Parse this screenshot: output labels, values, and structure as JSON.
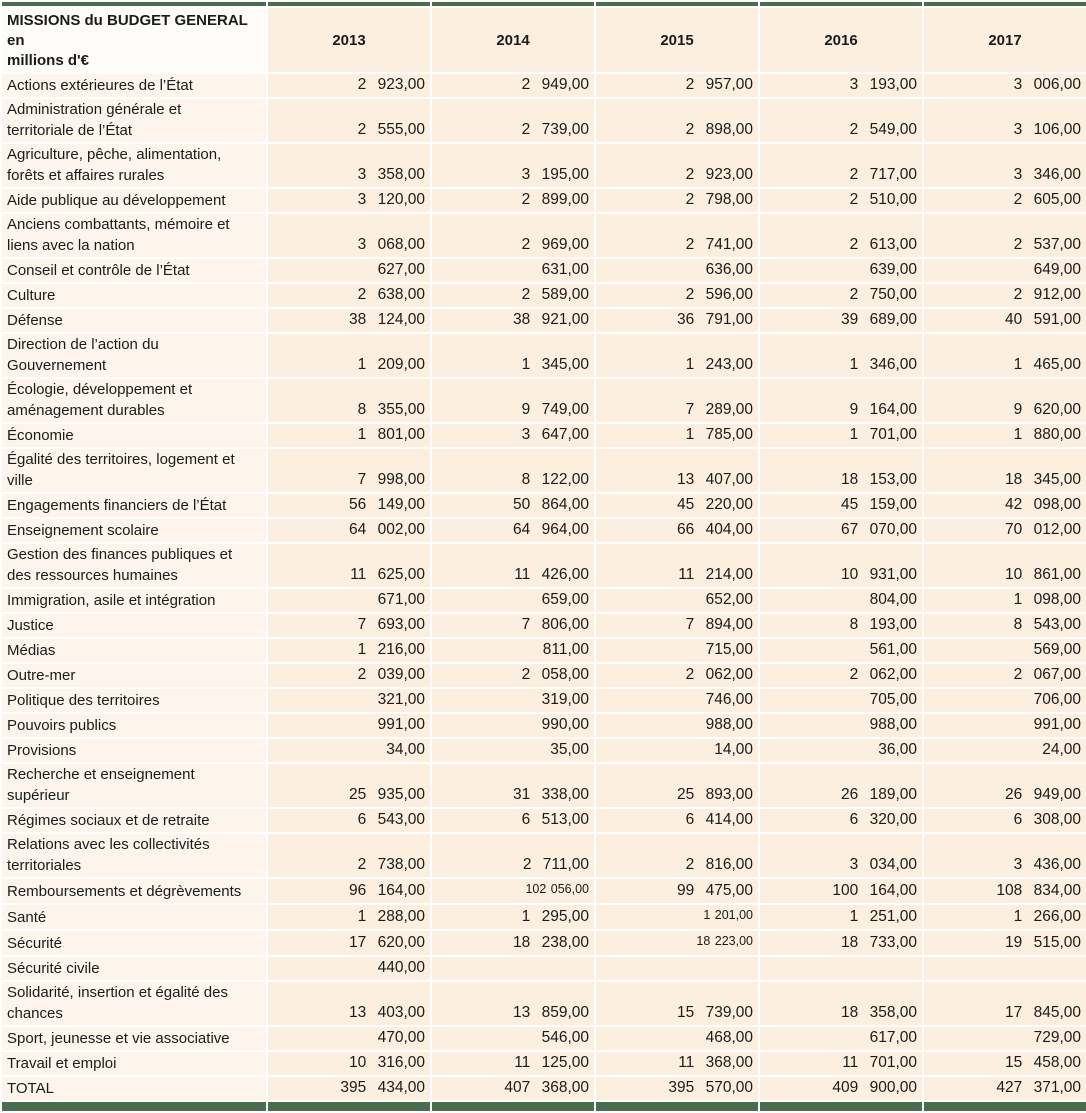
{
  "table": {
    "title": "MISSIONS du BUDGET GENERAL en\nmillions d'€",
    "years": [
      "2013",
      "2014",
      "2015",
      "2016",
      "2017"
    ],
    "rows": [
      {
        "label": "Actions extérieures de l’État",
        "lines": 1,
        "values": [
          "2 923,00",
          "2 949,00",
          "2 957,00",
          "3 193,00",
          "3 006,00"
        ]
      },
      {
        "label": "Administration générale et\nterritoriale de l’État",
        "lines": 2,
        "values": [
          "2 555,00",
          "2 739,00",
          "2 898,00",
          "2 549,00",
          "3 106,00"
        ]
      },
      {
        "label": "Agriculture, pêche, alimentation,\nforêts et affaires rurales",
        "lines": 2,
        "values": [
          "3 358,00",
          "3 195,00",
          "2 923,00",
          "2 717,00",
          "3 346,00"
        ]
      },
      {
        "label": "Aide publique au développement",
        "lines": 1,
        "values": [
          "3 120,00",
          "2 899,00",
          "2 798,00",
          "2 510,00",
          "2 605,00"
        ]
      },
      {
        "label": "Anciens combattants, mémoire et\nliens avec la nation",
        "lines": 2,
        "values": [
          "3 068,00",
          "2 969,00",
          "2 741,00",
          "2 613,00",
          "2 537,00"
        ]
      },
      {
        "label": "Conseil et contrôle de l’État",
        "lines": 1,
        "values": [
          "627,00",
          "631,00",
          "636,00",
          "639,00",
          "649,00"
        ]
      },
      {
        "label": "Culture",
        "lines": 1,
        "values": [
          "2 638,00",
          "2 589,00",
          "2 596,00",
          "2 750,00",
          "2 912,00"
        ]
      },
      {
        "label": "Défense",
        "lines": 1,
        "values": [
          "38 124,00",
          "38 921,00",
          "36 791,00",
          "39 689,00",
          "40 591,00"
        ]
      },
      {
        "label": "Direction de l’action du\nGouvernement",
        "lines": 2,
        "values": [
          "1 209,00",
          "1 345,00",
          "1 243,00",
          "1 346,00",
          "1 465,00"
        ]
      },
      {
        "label": "Écologie, développement et\naménagement durables",
        "lines": 2,
        "values": [
          "8 355,00",
          "9 749,00",
          "7 289,00",
          "9 164,00",
          "9 620,00"
        ]
      },
      {
        "label": "Économie",
        "lines": 1,
        "values": [
          "1 801,00",
          "3 647,00",
          "1 785,00",
          "1 701,00",
          "1 880,00"
        ]
      },
      {
        "label": "Égalité des territoires, logement et\nville",
        "lines": 2,
        "values": [
          "7 998,00",
          "8 122,00",
          "13 407,00",
          "18 153,00",
          "18 345,00"
        ]
      },
      {
        "label": "Engagements financiers de l’État",
        "lines": 1,
        "values": [
          "56 149,00",
          "50 864,00",
          "45 220,00",
          "45 159,00",
          "42 098,00"
        ]
      },
      {
        "label": "Enseignement scolaire",
        "lines": 1,
        "values": [
          "64 002,00",
          "64 964,00",
          "66 404,00",
          "67 070,00",
          "70 012,00"
        ]
      },
      {
        "label": "Gestion des finances publiques et\ndes ressources humaines",
        "lines": 2,
        "values": [
          "11 625,00",
          "11 426,00",
          "11 214,00",
          "10 931,00",
          "10 861,00"
        ]
      },
      {
        "label": "Immigration, asile et intégration",
        "lines": 1,
        "values": [
          "671,00",
          "659,00",
          "652,00",
          "804,00",
          "1 098,00"
        ]
      },
      {
        "label": "Justice",
        "lines": 1,
        "values": [
          "7 693,00",
          "7 806,00",
          "7 894,00",
          "8 193,00",
          "8 543,00"
        ]
      },
      {
        "label": "Médias",
        "lines": 1,
        "values": [
          "1 216,00",
          "811,00",
          "715,00",
          "561,00",
          "569,00"
        ]
      },
      {
        "label": "Outre-mer",
        "lines": 1,
        "values": [
          "2 039,00",
          "2 058,00",
          "2 062,00",
          "2 062,00",
          "2 067,00"
        ]
      },
      {
        "label": "Politique des territoires",
        "lines": 1,
        "values": [
          "321,00",
          "319,00",
          "746,00",
          "705,00",
          "706,00"
        ]
      },
      {
        "label": "Pouvoirs publics",
        "lines": 1,
        "values": [
          "991,00",
          "990,00",
          "988,00",
          "988,00",
          "991,00"
        ]
      },
      {
        "label": "Provisions",
        "lines": 1,
        "values": [
          "34,00",
          "35,00",
          "14,00",
          "36,00",
          "24,00"
        ]
      },
      {
        "label": "Recherche et enseignement\nsupérieur",
        "lines": 2,
        "values": [
          "25 935,00",
          "31 338,00",
          "25 893,00",
          "26 189,00",
          "26 949,00"
        ]
      },
      {
        "label": "Régimes sociaux et de retraite",
        "lines": 1,
        "values": [
          "6 543,00",
          "6 513,00",
          "6 414,00",
          "6 320,00",
          "6 308,00"
        ]
      },
      {
        "label": "Relations avec les collectivités\nterritoriales",
        "lines": 2,
        "values": [
          "2 738,00",
          "2 711,00",
          "2 816,00",
          "3 034,00",
          "3 436,00"
        ]
      },
      {
        "label": "Remboursements et dégrèvements",
        "lines": 1,
        "values": [
          "96 164,00",
          "102 056,00",
          "99 475,00",
          "100 164,00",
          "108 834,00"
        ],
        "small_cols": [
          1
        ]
      },
      {
        "label": "Santé",
        "lines": 1,
        "values": [
          "1 288,00",
          "1 295,00",
          "1 201,00",
          "1 251,00",
          "1 266,00"
        ],
        "small_cols": [
          2
        ]
      },
      {
        "label": "Sécurité",
        "lines": 1,
        "values": [
          "17 620,00",
          "18 238,00",
          "18 223,00",
          "18 733,00",
          "19 515,00"
        ],
        "small_cols": [
          2
        ]
      },
      {
        "label": "Sécurité civile",
        "lines": 1,
        "values": [
          "440,00",
          "",
          "",
          "",
          ""
        ]
      },
      {
        "label": "Solidarité, insertion et égalité des\nchances",
        "lines": 2,
        "values": [
          "13 403,00",
          "13 859,00",
          "15 739,00",
          "18 358,00",
          "17 845,00"
        ]
      },
      {
        "label": "Sport, jeunesse et vie associative",
        "lines": 1,
        "values": [
          "470,00",
          "546,00",
          "468,00",
          "617,00",
          "729,00"
        ]
      },
      {
        "label": "Travail et emploi",
        "lines": 1,
        "values": [
          "10 316,00",
          "11 125,00",
          "11 368,00",
          "11 701,00",
          "15 458,00"
        ]
      },
      {
        "label": "TOTAL",
        "lines": 1,
        "total": true,
        "values": [
          "395 434,00",
          "407 368,00",
          "395 570,00",
          "409 900,00",
          "427 371,00"
        ]
      }
    ]
  },
  "colors": {
    "bar_green": "#4a6d4e",
    "data_cell_bg": "#fcefdf",
    "label_cell_bg": "#fdf5ec",
    "header_label_bg": "#fefcf8",
    "gridline": "#ffffff",
    "text": "#1b1b1b"
  },
  "chart_data": {
    "type": "table",
    "title": "MISSIONS du BUDGET GENERAL en millions d'€",
    "columns": [
      "2013",
      "2014",
      "2015",
      "2016",
      "2017"
    ],
    "unit": "millions d'€",
    "rows": [
      {
        "label": "Actions extérieures de l’État",
        "values": [
          2923,
          2949,
          2957,
          3193,
          3006
        ]
      },
      {
        "label": "Administration générale et territoriale de l’État",
        "values": [
          2555,
          2739,
          2898,
          2549,
          3106
        ]
      },
      {
        "label": "Agriculture, pêche, alimentation, forêts et affaires rurales",
        "values": [
          3358,
          3195,
          2923,
          2717,
          3346
        ]
      },
      {
        "label": "Aide publique au développement",
        "values": [
          3120,
          2899,
          2798,
          2510,
          2605
        ]
      },
      {
        "label": "Anciens combattants, mémoire et liens avec la nation",
        "values": [
          3068,
          2969,
          2741,
          2613,
          2537
        ]
      },
      {
        "label": "Conseil et contrôle de l’État",
        "values": [
          627,
          631,
          636,
          639,
          649
        ]
      },
      {
        "label": "Culture",
        "values": [
          2638,
          2589,
          2596,
          2750,
          2912
        ]
      },
      {
        "label": "Défense",
        "values": [
          38124,
          38921,
          36791,
          39689,
          40591
        ]
      },
      {
        "label": "Direction de l’action du Gouvernement",
        "values": [
          1209,
          1345,
          1243,
          1346,
          1465
        ]
      },
      {
        "label": "Écologie, développement et aménagement durables",
        "values": [
          8355,
          9749,
          7289,
          9164,
          9620
        ]
      },
      {
        "label": "Économie",
        "values": [
          1801,
          3647,
          1785,
          1701,
          1880
        ]
      },
      {
        "label": "Égalité des territoires, logement et ville",
        "values": [
          7998,
          8122,
          13407,
          18153,
          18345
        ]
      },
      {
        "label": "Engagements financiers de l’État",
        "values": [
          56149,
          50864,
          45220,
          45159,
          42098
        ]
      },
      {
        "label": "Enseignement scolaire",
        "values": [
          64002,
          64964,
          66404,
          67070,
          70012
        ]
      },
      {
        "label": "Gestion des finances publiques et des ressources humaines",
        "values": [
          11625,
          11426,
          11214,
          10931,
          10861
        ]
      },
      {
        "label": "Immigration, asile et intégration",
        "values": [
          671,
          659,
          652,
          804,
          1098
        ]
      },
      {
        "label": "Justice",
        "values": [
          7693,
          7806,
          7894,
          8193,
          8543
        ]
      },
      {
        "label": "Médias",
        "values": [
          1216,
          811,
          715,
          561,
          569
        ]
      },
      {
        "label": "Outre-mer",
        "values": [
          2039,
          2058,
          2062,
          2062,
          2067
        ]
      },
      {
        "label": "Politique des territoires",
        "values": [
          321,
          319,
          746,
          705,
          706
        ]
      },
      {
        "label": "Pouvoirs publics",
        "values": [
          991,
          990,
          988,
          988,
          991
        ]
      },
      {
        "label": "Provisions",
        "values": [
          34,
          35,
          14,
          36,
          24
        ]
      },
      {
        "label": "Recherche et enseignement supérieur",
        "values": [
          25935,
          31338,
          25893,
          26189,
          26949
        ]
      },
      {
        "label": "Régimes sociaux et de retraite",
        "values": [
          6543,
          6513,
          6414,
          6320,
          6308
        ]
      },
      {
        "label": "Relations avec les collectivités territoriales",
        "values": [
          2738,
          2711,
          2816,
          3034,
          3436
        ]
      },
      {
        "label": "Remboursements et dégrèvements",
        "values": [
          96164,
          102056,
          99475,
          100164,
          108834
        ]
      },
      {
        "label": "Santé",
        "values": [
          1288,
          1295,
          1201,
          1251,
          1266
        ]
      },
      {
        "label": "Sécurité",
        "values": [
          17620,
          18238,
          18223,
          18733,
          19515
        ]
      },
      {
        "label": "Sécurité civile",
        "values": [
          440,
          null,
          null,
          null,
          null
        ]
      },
      {
        "label": "Solidarité, insertion et égalité des chances",
        "values": [
          13403,
          13859,
          15739,
          18358,
          17845
        ]
      },
      {
        "label": "Sport, jeunesse et vie associative",
        "values": [
          470,
          546,
          468,
          617,
          729
        ]
      },
      {
        "label": "Travail et emploi",
        "values": [
          10316,
          11125,
          11368,
          11701,
          15458
        ]
      },
      {
        "label": "TOTAL",
        "values": [
          395434,
          407368,
          395570,
          409900,
          427371
        ]
      }
    ]
  }
}
